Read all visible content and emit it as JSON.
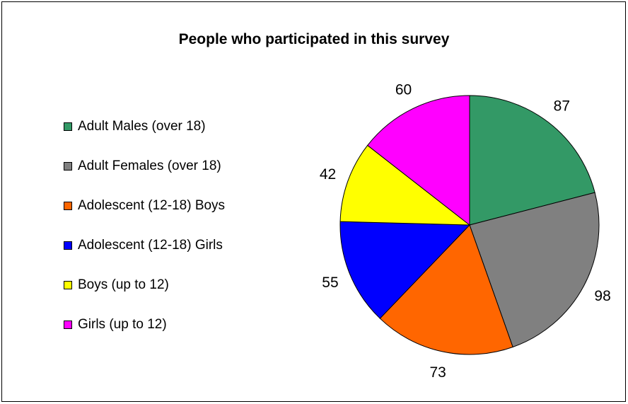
{
  "chart_data": {
    "type": "pie",
    "title": "People who participated in this survey",
    "categories": [
      "Adult Males (over 18)",
      "Adult Females (over 18)",
      "Adolescent (12-18) Boys",
      "Adolescent (12-18) Girls",
      "Boys (up to 12)",
      "Girls (up to 12)"
    ],
    "values": [
      87,
      98,
      73,
      55,
      42,
      60
    ],
    "colors": [
      "#339966",
      "#808080",
      "#FF6600",
      "#0000FF",
      "#FFFF00",
      "#FF00FF"
    ],
    "legend_position": "left"
  }
}
